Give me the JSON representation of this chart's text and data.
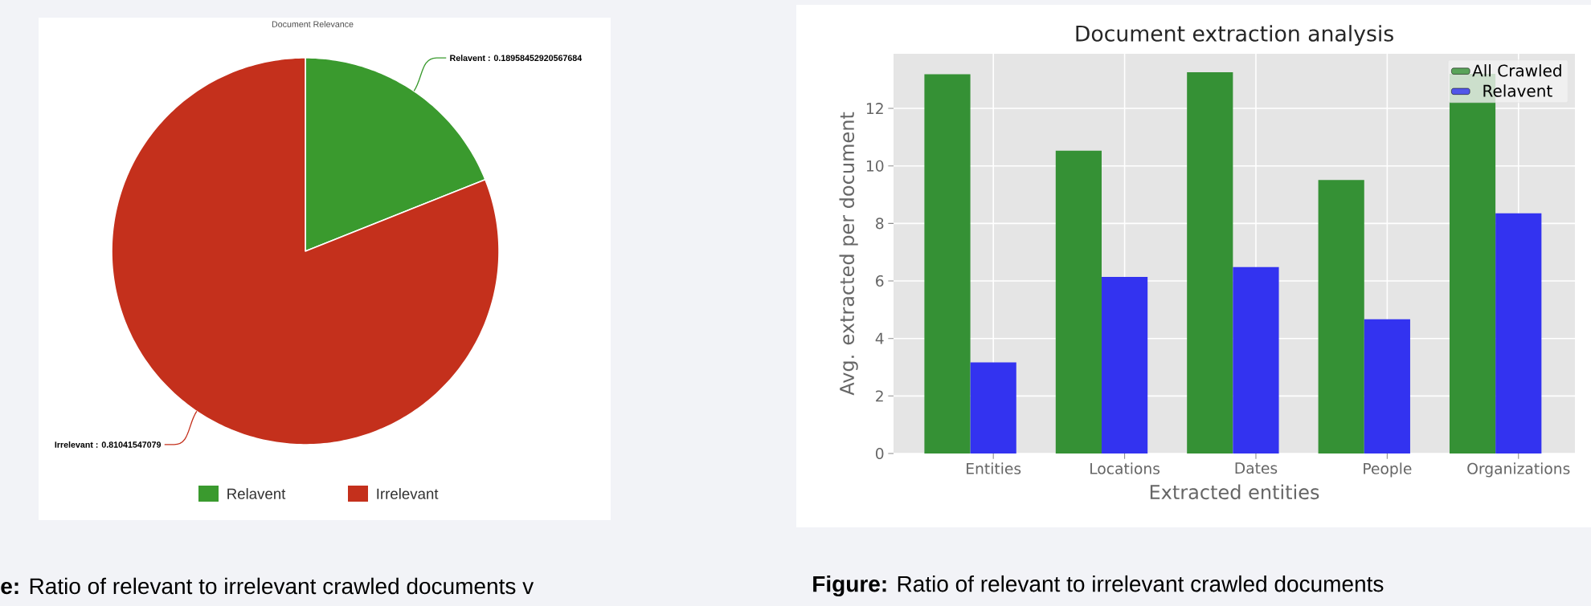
{
  "chart_data": [
    {
      "type": "pie",
      "title": "Document Relevance",
      "categories": [
        "Relavent",
        "Irrelevant"
      ],
      "values": [
        0.18958452920567684,
        0.81041547079
      ],
      "colors": [
        "#3a9a2e",
        "#c4301c"
      ],
      "value_labels": [
        "Relavent : 0.18958452920567684",
        "Irrelevant : 0.81041547079"
      ],
      "legend": "bottom",
      "annotations": [
        "**e:** Ratio of relevant to irrelevant crawled documents v"
      ]
    },
    {
      "type": "bar",
      "title": "Document extraction analysis",
      "xlabel": "Extracted entities",
      "ylabel": "Avg. extracted per document",
      "categories": [
        "Entities",
        "Locations",
        "Dates",
        "People",
        "Organizations"
      ],
      "series": [
        {
          "name": "All Crawled",
          "color": "#359135",
          "values": [
            13.19,
            10.53,
            13.26,
            9.51,
            13.2
          ]
        },
        {
          "name": "Relavent",
          "color": "#3333f0",
          "values": [
            3.17,
            6.14,
            6.48,
            4.67,
            8.35
          ]
        }
      ],
      "ylim": [
        0,
        13.9
      ],
      "yticks": [
        0,
        2,
        4,
        6,
        8,
        10,
        12
      ],
      "grid": true,
      "legend": "top right",
      "annotations": [
        "**Figure:** Ratio of relevant to irrelevant crawled documents"
      ]
    }
  ]
}
